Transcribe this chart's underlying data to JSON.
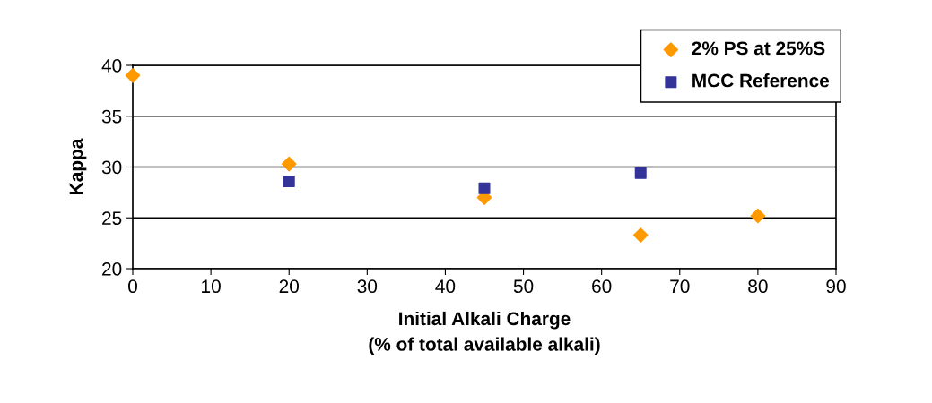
{
  "chart_data": {
    "type": "scatter",
    "xlabel": "Initial Alkali Charge\n(% of total available alkali)",
    "ylabel": "Kappa",
    "series": [
      {
        "name": "2% PS at 25%S",
        "color": "#ff9900",
        "marker": "diamond",
        "x": [
          0,
          20,
          45,
          65,
          80
        ],
        "values": [
          39.0,
          30.3,
          27.0,
          23.3,
          25.2
        ]
      },
      {
        "name": "MCC Reference",
        "color": "#333399",
        "marker": "square",
        "x": [
          20,
          45,
          65
        ],
        "values": [
          28.6,
          27.9,
          29.4
        ]
      }
    ],
    "xlim": [
      0,
      90
    ],
    "xticks": [
      0,
      10,
      20,
      30,
      40,
      50,
      60,
      70,
      80,
      90
    ],
    "ylim": [
      20,
      40
    ],
    "yticks": [
      20,
      25,
      30,
      35,
      40
    ],
    "grid": "y",
    "legend": "top right"
  }
}
